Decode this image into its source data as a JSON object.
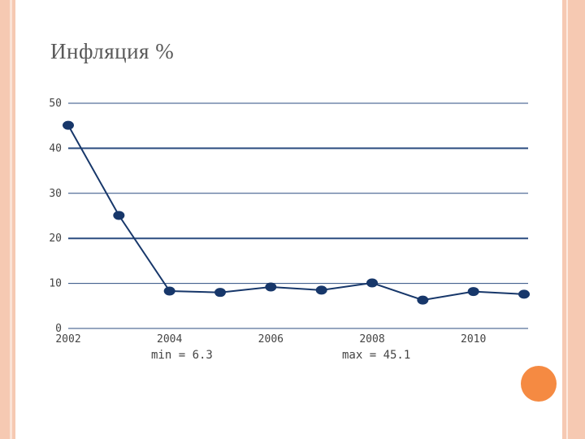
{
  "slide": {
    "title": "Инфляция %",
    "accent_color": "#f58a42",
    "frame_color": "#f6c9b2"
  },
  "chart_data": {
    "type": "line",
    "title": "",
    "xlabel": "",
    "ylabel": "",
    "x": [
      2002,
      2003,
      2004,
      2005,
      2006,
      2007,
      2008,
      2009,
      2010,
      2011
    ],
    "series": [
      {
        "values": [
          45.1,
          25.1,
          8.3,
          8.0,
          9.2,
          8.5,
          10.1,
          6.3,
          8.2,
          7.6
        ]
      }
    ],
    "xlim": [
      2002,
      2011
    ],
    "ylim": [
      0,
      50
    ],
    "yticks": [
      0,
      10,
      20,
      30,
      40,
      50
    ],
    "xticks": [
      2002,
      2004,
      2006,
      2008,
      2010
    ],
    "grid": true,
    "line_color": "#17376a",
    "grid_color": "#2c4d80",
    "annotations": {
      "min": "min = 6.3",
      "max": "max = 45.1"
    }
  }
}
